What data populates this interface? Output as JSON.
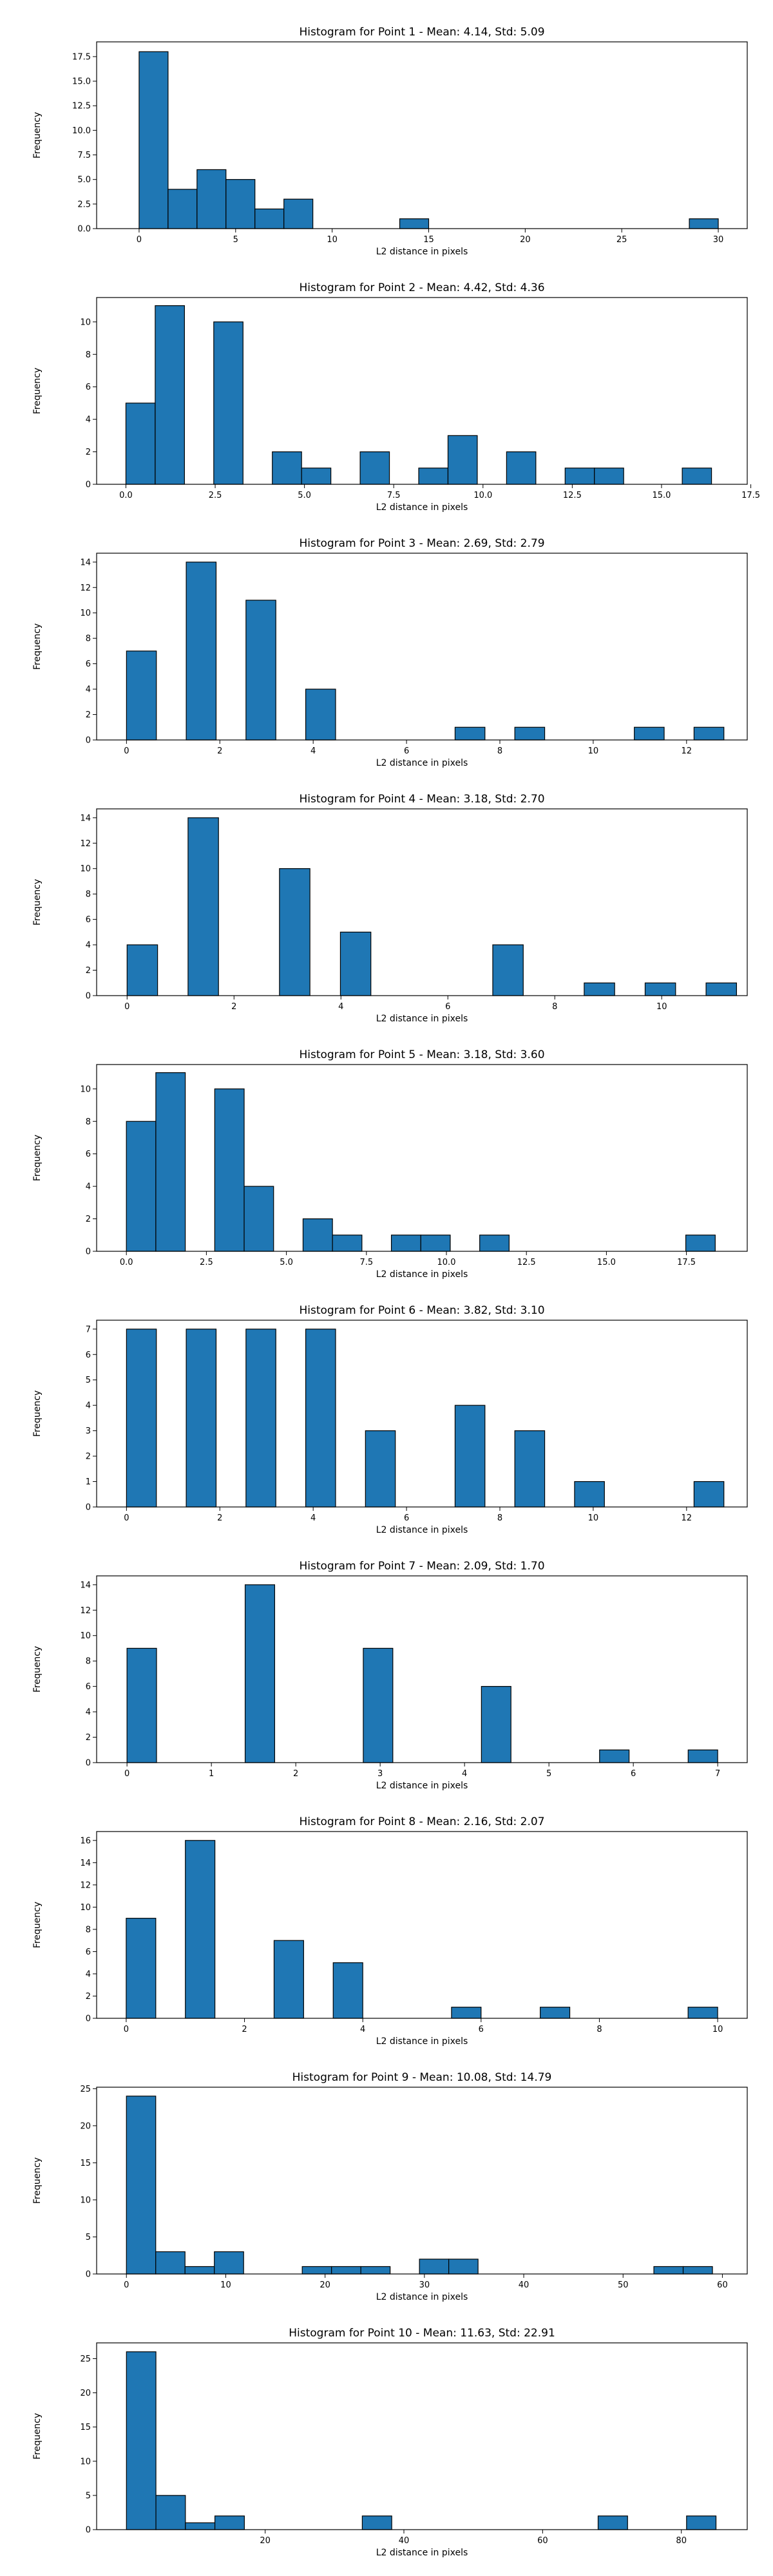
{
  "chart_data": [
    {
      "type": "bar",
      "title": "Histogram for Point 1 - Mean: 4.14, Std: 5.09",
      "xlabel": "L2 distance in pixels",
      "ylabel": "Frequency",
      "xlim": [
        -2.2,
        31.5
      ],
      "ylim": [
        0,
        19
      ],
      "xticks": [
        0,
        5,
        10,
        15,
        20,
        25,
        30
      ],
      "xtick_labels": [
        "0",
        "5",
        "10",
        "15",
        "20",
        "25",
        "30"
      ],
      "yticks": [
        0,
        2.5,
        5,
        7.5,
        10,
        12.5,
        15,
        17.5
      ],
      "ytick_labels": [
        "0.0",
        "2.5",
        "5.0",
        "7.5",
        "10.0",
        "12.5",
        "15.0",
        "17.5"
      ],
      "bins": [
        {
          "x0": 0.0,
          "x1": 1.5,
          "count": 18
        },
        {
          "x0": 1.5,
          "x1": 3.0,
          "count": 4
        },
        {
          "x0": 3.0,
          "x1": 4.5,
          "count": 6
        },
        {
          "x0": 4.5,
          "x1": 6.0,
          "count": 5
        },
        {
          "x0": 6.0,
          "x1": 7.5,
          "count": 2
        },
        {
          "x0": 7.5,
          "x1": 9.0,
          "count": 3
        },
        {
          "x0": 13.5,
          "x1": 15.0,
          "count": 1
        },
        {
          "x0": 28.5,
          "x1": 30.0,
          "count": 1
        }
      ],
      "grid": false
    },
    {
      "type": "bar",
      "title": "Histogram for Point 2 - Mean: 4.42, Std: 4.36",
      "xlabel": "L2 distance in pixels",
      "ylabel": "Frequency",
      "xlim": [
        -0.82,
        17.4
      ],
      "ylim": [
        0,
        11.5
      ],
      "xticks": [
        0,
        2.5,
        5,
        7.5,
        10,
        12.5,
        15,
        17.5
      ],
      "xtick_labels": [
        "0.0",
        "2.5",
        "5.0",
        "7.5",
        "10.0",
        "12.5",
        "15.0",
        "17.5"
      ],
      "yticks": [
        0,
        2,
        4,
        6,
        8,
        10
      ],
      "ytick_labels": [
        "0",
        "2",
        "4",
        "6",
        "8",
        "10"
      ],
      "bins": [
        {
          "x0": 0.0,
          "x1": 0.82,
          "count": 5
        },
        {
          "x0": 0.82,
          "x1": 1.64,
          "count": 11
        },
        {
          "x0": 2.46,
          "x1": 3.28,
          "count": 10
        },
        {
          "x0": 4.1,
          "x1": 4.92,
          "count": 2
        },
        {
          "x0": 4.92,
          "x1": 5.74,
          "count": 1
        },
        {
          "x0": 6.56,
          "x1": 7.38,
          "count": 2
        },
        {
          "x0": 8.2,
          "x1": 9.02,
          "count": 1
        },
        {
          "x0": 9.02,
          "x1": 9.84,
          "count": 3
        },
        {
          "x0": 10.66,
          "x1": 11.48,
          "count": 2
        },
        {
          "x0": 12.3,
          "x1": 13.12,
          "count": 1
        },
        {
          "x0": 13.12,
          "x1": 13.94,
          "count": 1
        },
        {
          "x0": 15.58,
          "x1": 16.4,
          "count": 1
        }
      ],
      "grid": false
    },
    {
      "type": "bar",
      "title": "Histogram for Point 3 - Mean: 2.69, Std: 2.79",
      "xlabel": "L2 distance in pixels",
      "ylabel": "Frequency",
      "xlim": [
        -0.64,
        13.3
      ],
      "ylim": [
        0,
        14.7
      ],
      "xticks": [
        0,
        2,
        4,
        6,
        8,
        10,
        12
      ],
      "xtick_labels": [
        "0",
        "2",
        "4",
        "6",
        "8",
        "10",
        "12"
      ],
      "yticks": [
        0,
        2,
        4,
        6,
        8,
        10,
        12,
        14
      ],
      "ytick_labels": [
        "0",
        "2",
        "4",
        "6",
        "8",
        "10",
        "12",
        "14"
      ],
      "bins": [
        {
          "x0": 0.0,
          "x1": 0.64,
          "count": 7
        },
        {
          "x0": 1.28,
          "x1": 1.92,
          "count": 14
        },
        {
          "x0": 2.56,
          "x1": 3.2,
          "count": 11
        },
        {
          "x0": 3.84,
          "x1": 4.48,
          "count": 4
        },
        {
          "x0": 7.04,
          "x1": 7.68,
          "count": 1
        },
        {
          "x0": 8.32,
          "x1": 8.96,
          "count": 1
        },
        {
          "x0": 10.88,
          "x1": 11.52,
          "count": 1
        },
        {
          "x0": 12.16,
          "x1": 12.8,
          "count": 1
        }
      ],
      "grid": false
    },
    {
      "type": "bar",
      "title": "Histogram for Point 4 - Mean: 3.18, Std: 2.70",
      "xlabel": "L2 distance in pixels",
      "ylabel": "Frequency",
      "xlim": [
        -0.57,
        11.6
      ],
      "ylim": [
        0,
        14.7
      ],
      "xticks": [
        0,
        2,
        4,
        6,
        8,
        10
      ],
      "xtick_labels": [
        "0",
        "2",
        "4",
        "6",
        "8",
        "10"
      ],
      "yticks": [
        0,
        2,
        4,
        6,
        8,
        10,
        12,
        14
      ],
      "ytick_labels": [
        "0",
        "2",
        "4",
        "6",
        "8",
        "10",
        "12",
        "14"
      ],
      "bins": [
        {
          "x0": 0.0,
          "x1": 0.57,
          "count": 4
        },
        {
          "x0": 1.14,
          "x1": 1.71,
          "count": 14
        },
        {
          "x0": 2.85,
          "x1": 3.42,
          "count": 10
        },
        {
          "x0": 3.99,
          "x1": 4.56,
          "count": 5
        },
        {
          "x0": 6.84,
          "x1": 7.41,
          "count": 4
        },
        {
          "x0": 8.55,
          "x1": 9.12,
          "count": 1
        },
        {
          "x0": 9.69,
          "x1": 10.26,
          "count": 1
        },
        {
          "x0": 10.83,
          "x1": 11.4,
          "count": 1
        }
      ],
      "grid": false
    },
    {
      "type": "bar",
      "title": "Histogram for Point 5 - Mean: 3.18, Std: 3.60",
      "xlabel": "L2 distance in pixels",
      "ylabel": "Frequency",
      "xlim": [
        -0.93,
        19.4
      ],
      "ylim": [
        0,
        11.5
      ],
      "xticks": [
        0,
        2.5,
        5,
        7.5,
        10,
        12.5,
        15,
        17.5
      ],
      "xtick_labels": [
        "0.0",
        "2.5",
        "5.0",
        "7.5",
        "10.0",
        "12.5",
        "15.0",
        "17.5"
      ],
      "yticks": [
        0,
        2,
        4,
        6,
        8,
        10
      ],
      "ytick_labels": [
        "0",
        "2",
        "4",
        "6",
        "8",
        "10"
      ],
      "bins": [
        {
          "x0": 0.0,
          "x1": 0.92,
          "count": 8
        },
        {
          "x0": 0.92,
          "x1": 1.84,
          "count": 11
        },
        {
          "x0": 2.76,
          "x1": 3.68,
          "count": 10
        },
        {
          "x0": 3.68,
          "x1": 4.6,
          "count": 4
        },
        {
          "x0": 5.52,
          "x1": 6.44,
          "count": 2
        },
        {
          "x0": 6.44,
          "x1": 7.36,
          "count": 1
        },
        {
          "x0": 8.28,
          "x1": 9.2,
          "count": 1
        },
        {
          "x0": 9.2,
          "x1": 10.12,
          "count": 1
        },
        {
          "x0": 11.04,
          "x1": 11.96,
          "count": 1
        },
        {
          "x0": 17.48,
          "x1": 18.4,
          "count": 1
        }
      ],
      "grid": false
    },
    {
      "type": "bar",
      "title": "Histogram for Point 6 - Mean: 3.82, Std: 3.10",
      "xlabel": "L2 distance in pixels",
      "ylabel": "Frequency",
      "xlim": [
        -0.64,
        13.3
      ],
      "ylim": [
        0,
        7.35
      ],
      "xticks": [
        0,
        2,
        4,
        6,
        8,
        10,
        12
      ],
      "xtick_labels": [
        "0",
        "2",
        "4",
        "6",
        "8",
        "10",
        "12"
      ],
      "yticks": [
        0,
        1,
        2,
        3,
        4,
        5,
        6,
        7
      ],
      "ytick_labels": [
        "0",
        "1",
        "2",
        "3",
        "4",
        "5",
        "6",
        "7"
      ],
      "bins": [
        {
          "x0": 0.0,
          "x1": 0.64,
          "count": 7
        },
        {
          "x0": 1.28,
          "x1": 1.92,
          "count": 7
        },
        {
          "x0": 2.56,
          "x1": 3.2,
          "count": 7
        },
        {
          "x0": 3.84,
          "x1": 4.48,
          "count": 7
        },
        {
          "x0": 5.12,
          "x1": 5.76,
          "count": 3
        },
        {
          "x0": 7.04,
          "x1": 7.68,
          "count": 4
        },
        {
          "x0": 8.32,
          "x1": 8.96,
          "count": 3
        },
        {
          "x0": 9.6,
          "x1": 10.24,
          "count": 1
        },
        {
          "x0": 12.16,
          "x1": 12.8,
          "count": 1
        }
      ],
      "grid": false
    },
    {
      "type": "bar",
      "title": "Histogram for Point 7 - Mean: 2.09, Std: 1.70",
      "xlabel": "L2 distance in pixels",
      "ylabel": "Frequency",
      "xlim": [
        -0.36,
        7.35
      ],
      "ylim": [
        0,
        14.7
      ],
      "xticks": [
        0,
        1,
        2,
        3,
        4,
        5,
        6,
        7
      ],
      "xtick_labels": [
        "0",
        "1",
        "2",
        "3",
        "4",
        "5",
        "6",
        "7"
      ],
      "yticks": [
        0,
        2,
        4,
        6,
        8,
        10,
        12,
        14
      ],
      "ytick_labels": [
        "0",
        "2",
        "4",
        "6",
        "8",
        "10",
        "12",
        "14"
      ],
      "bins": [
        {
          "x0": 0.0,
          "x1": 0.35,
          "count": 9
        },
        {
          "x0": 1.4,
          "x1": 1.75,
          "count": 14
        },
        {
          "x0": 2.8,
          "x1": 3.15,
          "count": 9
        },
        {
          "x0": 4.2,
          "x1": 4.55,
          "count": 6
        },
        {
          "x0": 5.6,
          "x1": 5.95,
          "count": 1
        },
        {
          "x0": 6.65,
          "x1": 7.0,
          "count": 1
        }
      ],
      "grid": false
    },
    {
      "type": "bar",
      "title": "Histogram for Point 8 - Mean: 2.16, Std: 2.07",
      "xlabel": "L2 distance in pixels",
      "ylabel": "Frequency",
      "xlim": [
        -0.5,
        10.5
      ],
      "ylim": [
        0,
        16.8
      ],
      "xticks": [
        0,
        2,
        4,
        6,
        8,
        10
      ],
      "xtick_labels": [
        "0",
        "2",
        "4",
        "6",
        "8",
        "10"
      ],
      "yticks": [
        0,
        2,
        4,
        6,
        8,
        10,
        12,
        14,
        16
      ],
      "ytick_labels": [
        "0",
        "2",
        "4",
        "6",
        "8",
        "10",
        "12",
        "14",
        "16"
      ],
      "bins": [
        {
          "x0": 0.0,
          "x1": 0.5,
          "count": 9
        },
        {
          "x0": 1.0,
          "x1": 1.5,
          "count": 16
        },
        {
          "x0": 2.5,
          "x1": 3.0,
          "count": 7
        },
        {
          "x0": 3.5,
          "x1": 4.0,
          "count": 5
        },
        {
          "x0": 5.5,
          "x1": 6.0,
          "count": 1
        },
        {
          "x0": 7.0,
          "x1": 7.5,
          "count": 1
        },
        {
          "x0": 9.5,
          "x1": 10.0,
          "count": 1
        }
      ],
      "grid": false
    },
    {
      "type": "bar",
      "title": "Histogram for Point 9 - Mean: 10.08, Std: 14.79",
      "xlabel": "L2 distance in pixels",
      "ylabel": "Frequency",
      "xlim": [
        -3.0,
        62.5
      ],
      "ylim": [
        0,
        25.2
      ],
      "xticks": [
        0,
        10,
        20,
        30,
        40,
        50,
        60
      ],
      "xtick_labels": [
        "0",
        "10",
        "20",
        "30",
        "40",
        "50",
        "60"
      ],
      "yticks": [
        0,
        5,
        10,
        15,
        20,
        25
      ],
      "ytick_labels": [
        "0",
        "5",
        "10",
        "15",
        "20",
        "25"
      ],
      "bins": [
        {
          "x0": 0.0,
          "x1": 2.95,
          "count": 24
        },
        {
          "x0": 2.95,
          "x1": 5.9,
          "count": 3
        },
        {
          "x0": 5.9,
          "x1": 8.85,
          "count": 1
        },
        {
          "x0": 8.85,
          "x1": 11.8,
          "count": 3
        },
        {
          "x0": 17.7,
          "x1": 20.65,
          "count": 1
        },
        {
          "x0": 20.65,
          "x1": 23.6,
          "count": 1
        },
        {
          "x0": 23.6,
          "x1": 26.55,
          "count": 1
        },
        {
          "x0": 29.5,
          "x1": 32.45,
          "count": 2
        },
        {
          "x0": 32.45,
          "x1": 35.4,
          "count": 2
        },
        {
          "x0": 53.1,
          "x1": 56.05,
          "count": 1
        },
        {
          "x0": 56.05,
          "x1": 59.0,
          "count": 1
        }
      ],
      "grid": false
    },
    {
      "type": "bar",
      "title": "Histogram for Point 10 - Mean: 11.63, Std: 22.91",
      "xlabel": "L2 distance in pixels",
      "ylabel": "Frequency",
      "xlim": [
        -4.3,
        89.5
      ],
      "ylim": [
        0,
        27.3
      ],
      "xticks": [
        20,
        40,
        60,
        80
      ],
      "xtick_labels": [
        "20",
        "40",
        "60",
        "80"
      ],
      "yticks": [
        0,
        5,
        10,
        15,
        20,
        25
      ],
      "ytick_labels": [
        "0",
        "5",
        "10",
        "15",
        "20",
        "25"
      ],
      "bins": [
        {
          "x0": 0.0,
          "x1": 4.25,
          "count": 26
        },
        {
          "x0": 4.25,
          "x1": 8.5,
          "count": 5
        },
        {
          "x0": 8.5,
          "x1": 12.75,
          "count": 1
        },
        {
          "x0": 12.75,
          "x1": 17.0,
          "count": 2
        },
        {
          "x0": 34.0,
          "x1": 38.25,
          "count": 2
        },
        {
          "x0": 68.0,
          "x1": 72.25,
          "count": 2
        },
        {
          "x0": 80.75,
          "x1": 85.0,
          "count": 2
        }
      ],
      "grid": false
    }
  ]
}
